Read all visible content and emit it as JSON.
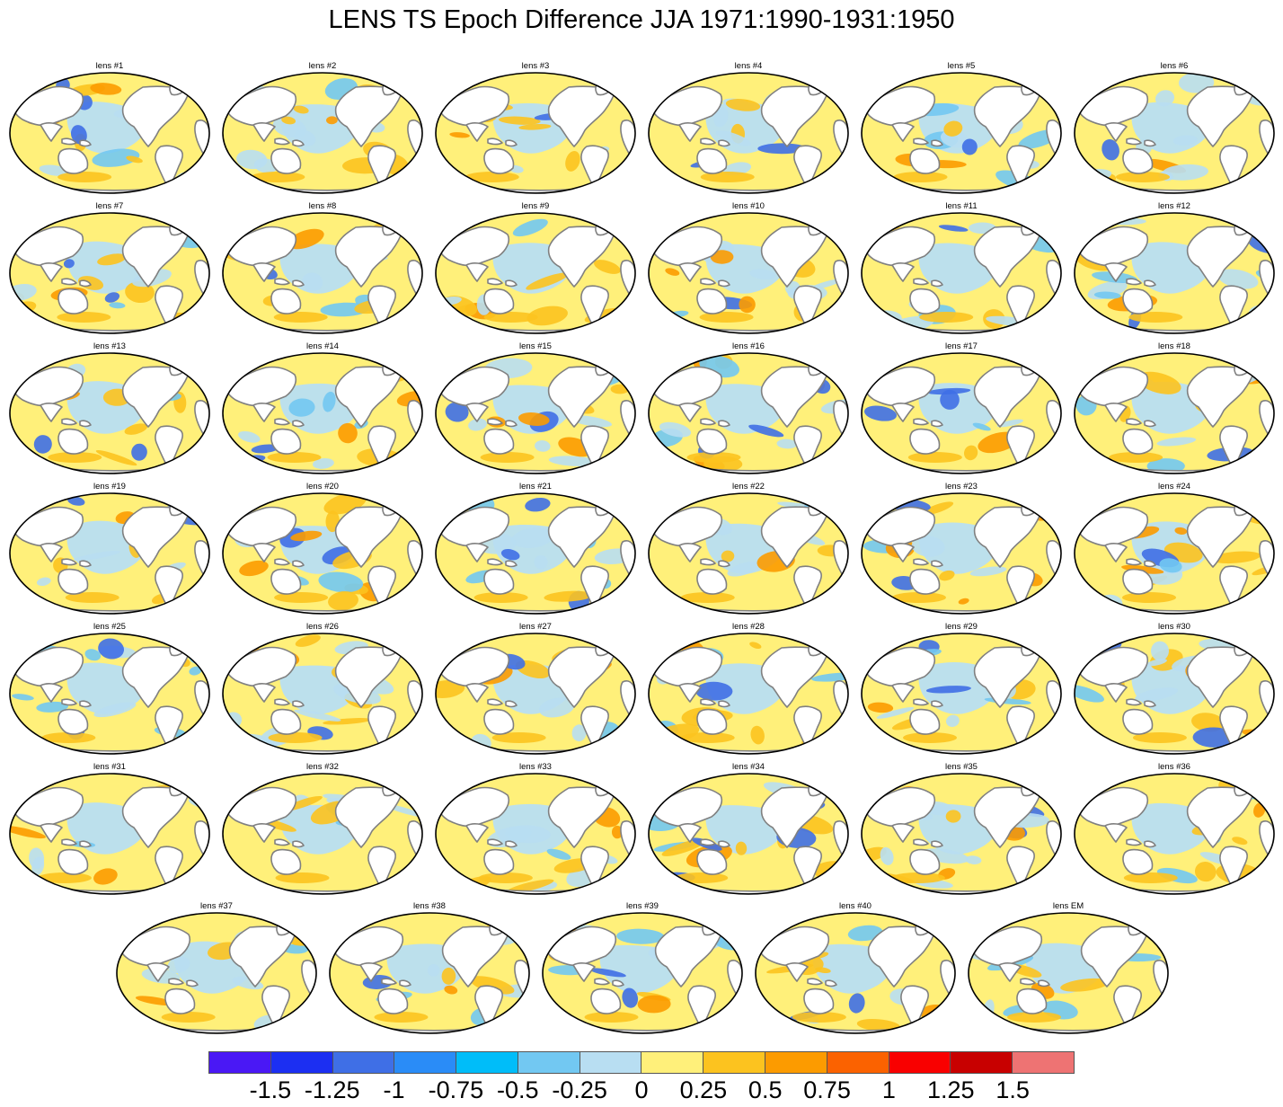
{
  "title": "LENS TS Epoch Difference JJA 1971:1990-1931:1950",
  "panels": [
    "lens #1",
    "lens #2",
    "lens #3",
    "lens #4",
    "lens #5",
    "lens #6",
    "lens #7",
    "lens #8",
    "lens #9",
    "lens #10",
    "lens #11",
    "lens #12",
    "lens #13",
    "lens #14",
    "lens #15",
    "lens #16",
    "lens #17",
    "lens #18",
    "lens #19",
    "lens #20",
    "lens #21",
    "lens #22",
    "lens #23",
    "lens #24",
    "lens #25",
    "lens #26",
    "lens #27",
    "lens #28",
    "lens #29",
    "lens #30",
    "lens #31",
    "lens #32",
    "lens #33",
    "lens #34",
    "lens #35",
    "lens #36",
    "lens #37",
    "lens #38",
    "lens #39",
    "lens #40",
    "lens EM"
  ],
  "colorbar": {
    "colors": [
      "#4a18f5",
      "#1c2ff2",
      "#3f6fe6",
      "#2a8cf7",
      "#00bdf9",
      "#72c8f2",
      "#b8def2",
      "#fff07a",
      "#fcc31f",
      "#fc9b00",
      "#fb6200",
      "#f90000",
      "#c80000",
      "#ee7373"
    ],
    "labels": [
      "-1.5",
      "-1.25",
      "-1",
      "-0.75",
      "-0.5",
      "-0.25",
      "0",
      "0.25",
      "0.5",
      "0.75",
      "1",
      "1.25",
      "1.5"
    ]
  },
  "map_colors": {
    "ocean_base": "#fff07a",
    "cool": "#b8def2",
    "cooler": "#72c8f2",
    "cold": "#3f6fe6",
    "warm": "#fcc31f",
    "hot": "#fc9b00",
    "land": "#ffffff",
    "coast": "#808080",
    "frame": "#000000"
  }
}
